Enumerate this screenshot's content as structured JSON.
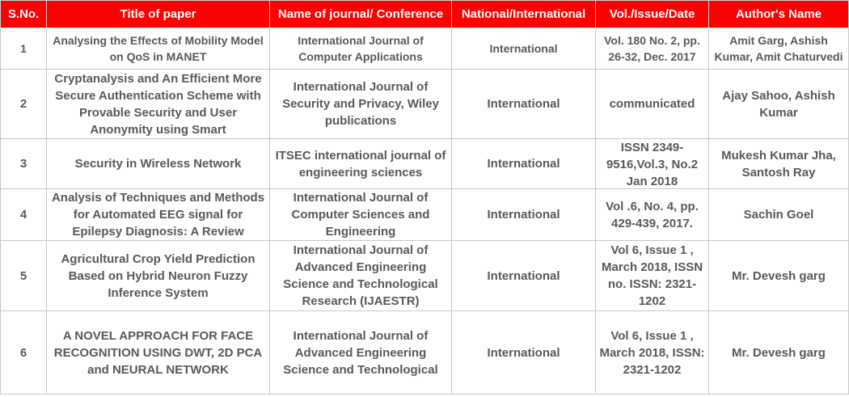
{
  "table": {
    "headers": [
      "S.No.",
      "Title of paper",
      "Name of journal/ Conference",
      "National/International",
      "Vol./Issue/Date",
      "Author's Name"
    ],
    "rows": [
      [
        "1",
        "Analysing the Effects of Mobility Model on QoS in MANET",
        "International Journal of Computer Applications",
        "International",
        "Vol. 180 No. 2, pp. 26-32, Dec. 2017",
        "Amit Garg, Ashish Kumar, Amit Chaturvedi"
      ],
      [
        "2",
        "Cryptanalysis and An Efficient More Secure Authentication Scheme with Provable Security and User Anonymity using Smart",
        "International Journal of Security and Privacy, Wiley publications",
        "International",
        "communicated",
        "Ajay Sahoo, Ashish Kumar"
      ],
      [
        "3",
        "Security in Wireless Network",
        "ITSEC international journal of engineering sciences",
        "International",
        "ISSN 2349-9516,Vol.3, No.2 Jan 2018",
        "Mukesh Kumar Jha, Santosh Ray"
      ],
      [
        "4",
        "Analysis of Techniques and Methods for Automated EEG signal for Epilepsy Diagnosis: A Review",
        "International Journal of Computer Sciences and Engineering",
        "International",
        "Vol .6, No. 4, pp. 429-439, 2017.",
        "Sachin Goel"
      ],
      [
        "5",
        "Agricultural Crop Yield Prediction Based on Hybrid Neuron Fuzzy Inference System",
        "International Journal of Advanced Engineering Science and Technological Research (IJAESTR)",
        "International",
        "Vol 6, Issue 1 , March 2018, ISSN no. ISSN: 2321-1202",
        "Mr. Devesh garg"
      ],
      [
        "6",
        "A NOVEL APPROACH FOR FACE RECOGNITION USING DWT, 2D PCA and NEURAL NETWORK",
        "International Journal of Advanced Engineering Science and Technological",
        "International",
        "Vol 6, Issue 1 , March 2018, ISSN: 2321-1202",
        "Mr. Devesh garg"
      ]
    ]
  }
}
